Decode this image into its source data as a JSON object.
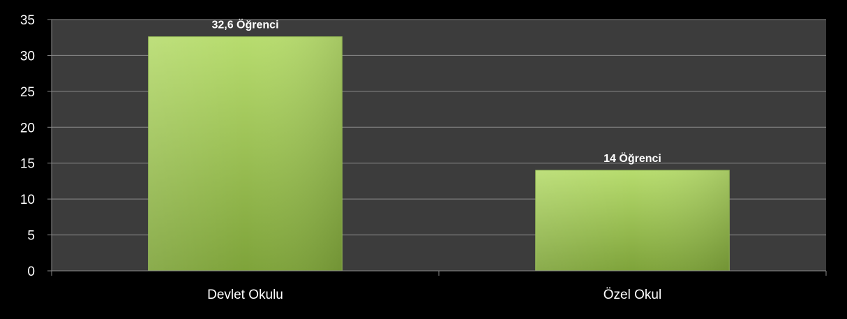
{
  "chart_data": {
    "type": "bar",
    "categories": [
      "Devlet Okulu",
      "Özel Okul"
    ],
    "values": [
      32.6,
      14
    ],
    "data_labels": [
      "32,6 Öğrenci",
      "14  Öğrenci"
    ],
    "title": "",
    "xlabel": "",
    "ylabel": "",
    "ylim": [
      0,
      35
    ],
    "yticks": [
      "0",
      "5",
      "10",
      "15",
      "20",
      "25",
      "30",
      "35"
    ],
    "grid": true,
    "legend": "none",
    "colors": {
      "background": "#000000",
      "plot_area": "#3c3c3c",
      "gridline": "#8a8a8a",
      "bar_top": "#b7dc6e",
      "bar_bottom": "#7ea33a",
      "text": "#ffffff"
    }
  }
}
